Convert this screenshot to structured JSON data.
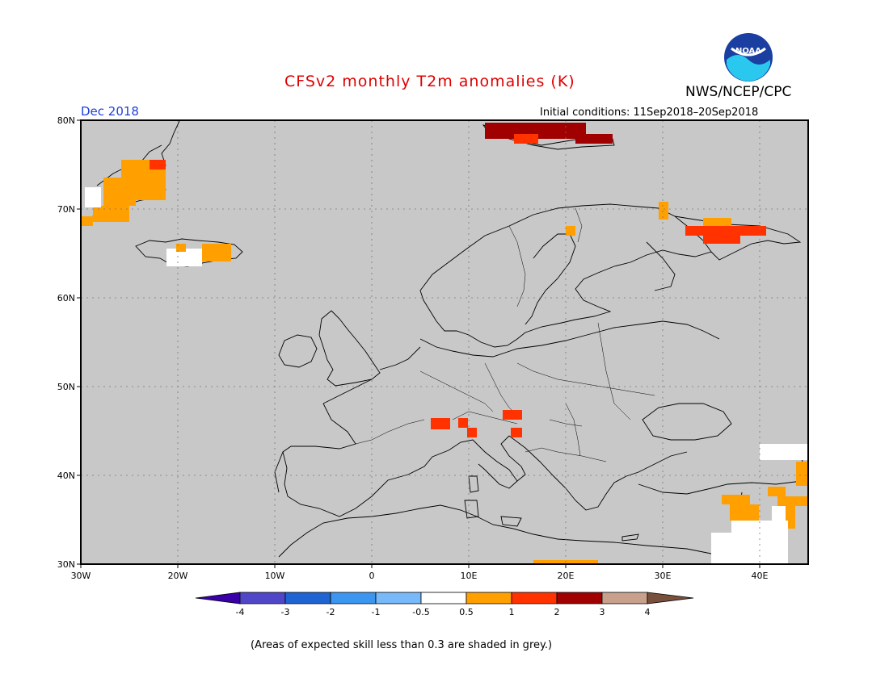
{
  "header": {
    "title": "CFSv2 monthly T2m anomalies (K)",
    "agency": "NWS/NCEP/CPC",
    "logo_text": "NOAA",
    "month": "Dec 2018",
    "initial_conditions": "Initial conditions: 11Sep2018–20Sep2018"
  },
  "axes": {
    "lat_labels": [
      "80N",
      "70N",
      "60N",
      "50N",
      "40N",
      "30N"
    ],
    "lon_labels": [
      "30W",
      "20W",
      "10W",
      "0",
      "10E",
      "20E",
      "30E",
      "40E"
    ]
  },
  "colorbar": {
    "labels": [
      "-4",
      "-3",
      "-2",
      "-1",
      "-0.5",
      "0.5",
      "1",
      "2",
      "3",
      "4"
    ],
    "colors": [
      "#3a00a8",
      "#5046c8",
      "#1e64d2",
      "#3c96f0",
      "#78b9fa",
      "#ffffff",
      "#ffa000",
      "#ff3200",
      "#a00000",
      "#c8a08c",
      "#78503c"
    ]
  },
  "footnote": "(Areas of expected skill less than 0.3 are shaded in grey.)",
  "colors": {
    "ocean_grey": "#c8c8c8",
    "title_red": "#e00000",
    "month_blue": "#1e3fd9"
  }
}
